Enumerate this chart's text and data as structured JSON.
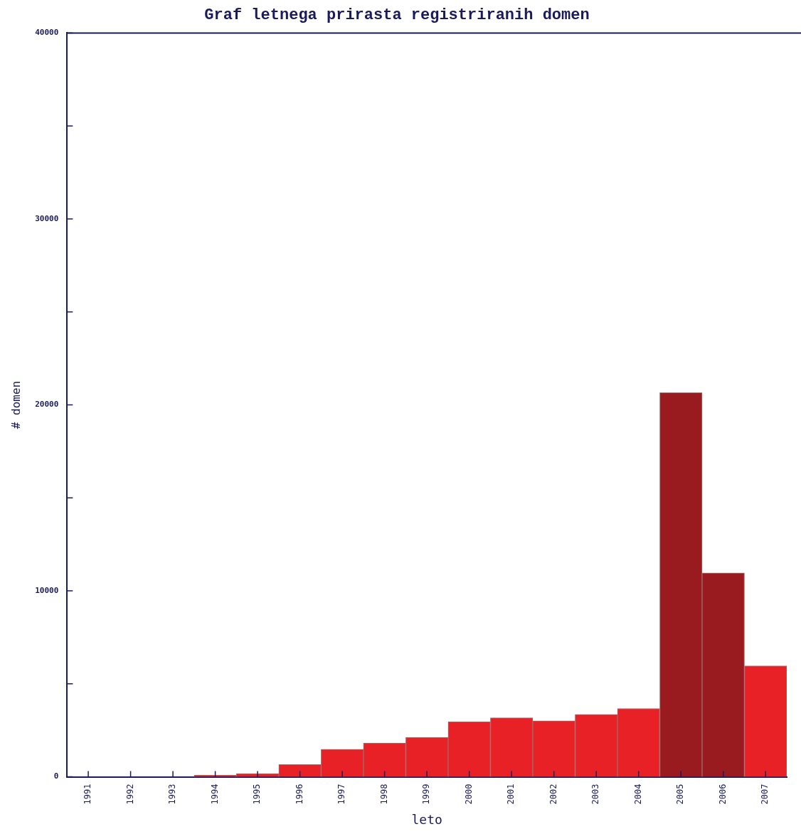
{
  "chart_data": {
    "type": "bar",
    "title": "Graf letnega prirasta registriranih domen",
    "xlabel": "leto",
    "ylabel": "# domen",
    "categories": [
      "1991",
      "1992",
      "1993",
      "1994",
      "1995",
      "1996",
      "1997",
      "1998",
      "1999",
      "2000",
      "2001",
      "2002",
      "2003",
      "2004",
      "2005",
      "2006",
      "2007"
    ],
    "values": [
      0,
      0,
      0,
      80,
      170,
      660,
      1480,
      1810,
      2120,
      2960,
      3170,
      3010,
      3350,
      3670,
      20650,
      10960,
      5960
    ],
    "colors": [
      "#e82127",
      "#e82127",
      "#e82127",
      "#e82127",
      "#e82127",
      "#e82127",
      "#e82127",
      "#e82127",
      "#e82127",
      "#e82127",
      "#e82127",
      "#e82127",
      "#e82127",
      "#e82127",
      "#9a1b1f",
      "#9a1b1f",
      "#e82127"
    ],
    "ylim": [
      0,
      40000
    ],
    "yticks": [
      0,
      {
        "value": 5000,
        "label": null
      },
      10000,
      {
        "value": 15000,
        "label": null
      },
      20000,
      {
        "value": 25000,
        "label": null
      },
      30000,
      {
        "value": 35000,
        "label": null
      },
      40000
    ],
    "grid": false,
    "legend": false
  }
}
